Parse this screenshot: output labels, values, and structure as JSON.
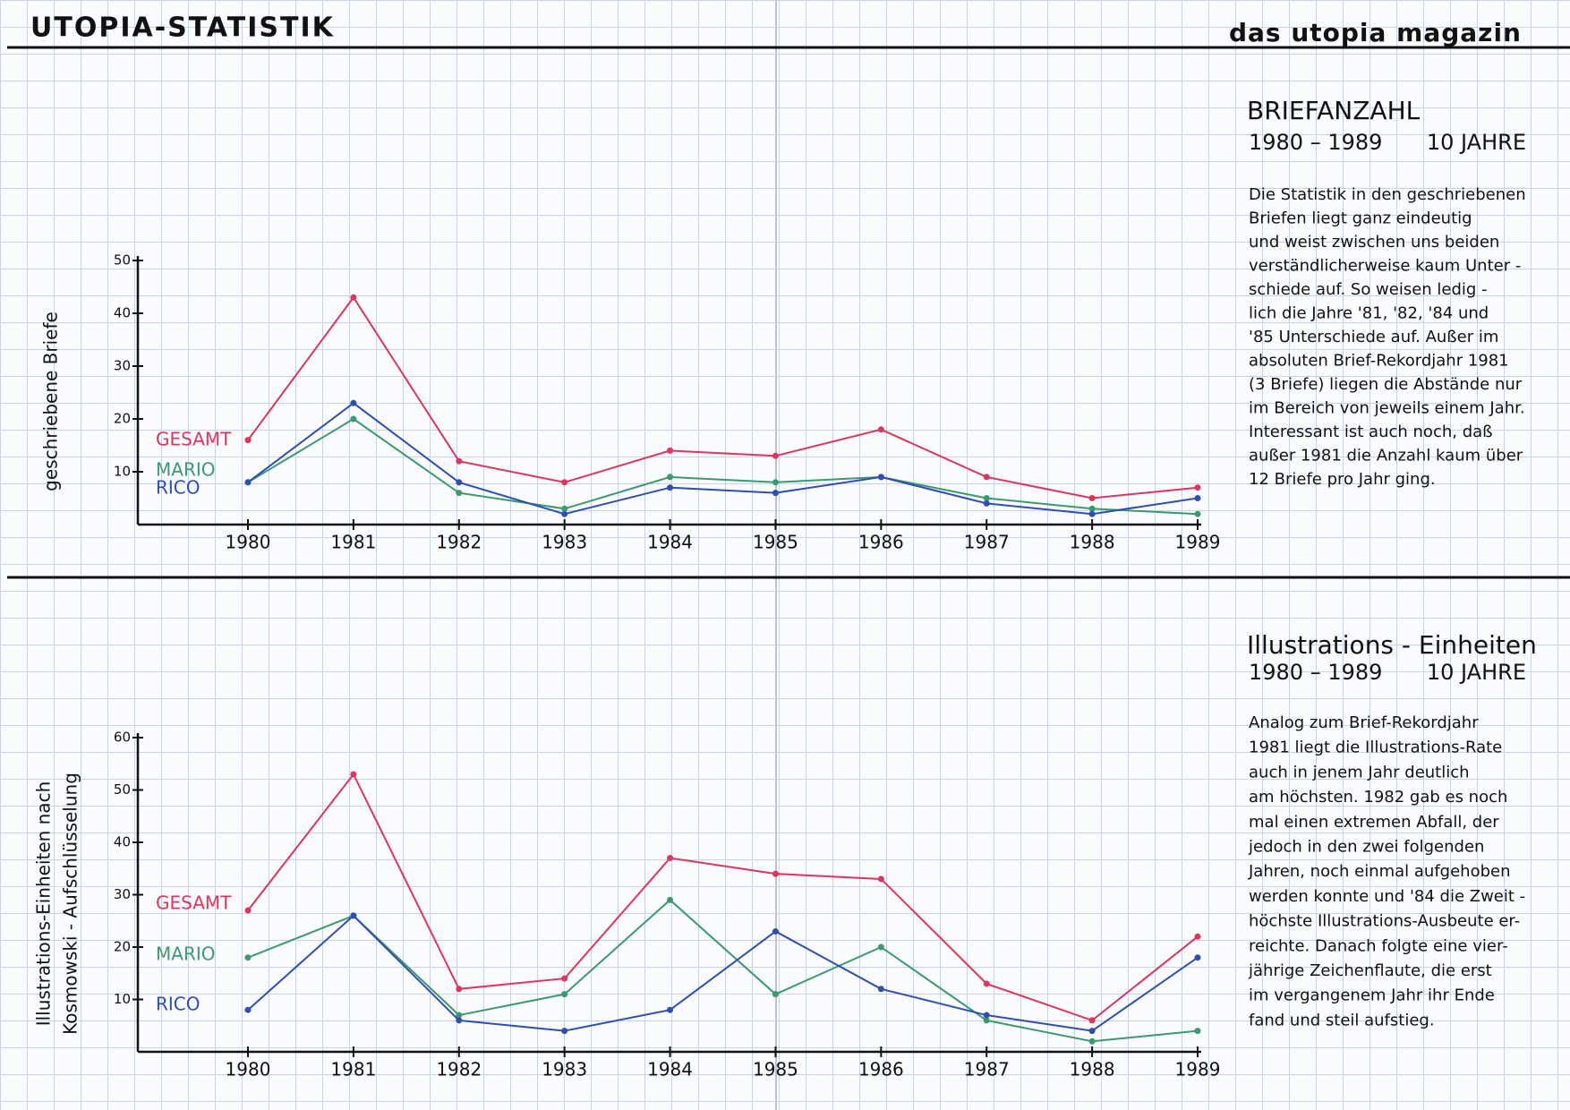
{
  "header": {
    "title": "UTOPIA-STATISTIK",
    "brand": "das utopia magazin"
  },
  "chart_data": [
    {
      "type": "line",
      "title": "BRIEFANZAHL",
      "subtitle": "1980 – 1989",
      "period": "10 JAHRE",
      "ylabel": [
        "geschriebene Briefe"
      ],
      "description": [
        "Die Statistik in den geschriebenen",
        "Briefen liegt ganz eindeutig",
        "und weist zwischen uns beiden",
        "verständlicherweise kaum Unter -",
        "schiede auf. So weisen ledig -",
        "lich die Jahre '81, '82, '84 und",
        "'85 Unterschiede auf. Außer im",
        "absoluten Brief-Rekordjahr 1981",
        "(3 Briefe) liegen die Abstände nur",
        "im Bereich von jeweils einem Jahr.",
        "Interessant ist auch noch, daß",
        "außer 1981 die Anzahl kaum über",
        "12 Briefe pro Jahr ging."
      ],
      "categories": [
        "1980",
        "1981",
        "1982",
        "1983",
        "1984",
        "1985",
        "1986",
        "1987",
        "1988",
        "1989"
      ],
      "series": [
        {
          "name": "GESAMT",
          "color": "#e0355a",
          "values": [
            16,
            43,
            12,
            8,
            14,
            13,
            18,
            9,
            5,
            7
          ]
        },
        {
          "name": "MARIO",
          "color": "#3a9a6c",
          "values": [
            8,
            20,
            6,
            3,
            9,
            8,
            9,
            5,
            3,
            2
          ]
        },
        {
          "name": "RICO",
          "color": "#2f4fb0",
          "values": [
            8,
            23,
            8,
            2,
            7,
            6,
            9,
            4,
            2,
            5
          ]
        }
      ],
      "ylim": [
        0,
        50
      ],
      "yticks": [
        10,
        20,
        30,
        40,
        50
      ],
      "grid": false
    },
    {
      "type": "line",
      "title": "Illustrations - Einheiten",
      "subtitle": "1980 – 1989",
      "period": "10 JAHRE",
      "ylabel": [
        "Illustrations-Einheiten nach",
        "Kosmowski - Aufschlüsselung"
      ],
      "description": [
        "Analog zum Brief-Rekordjahr",
        "1981 liegt die Illustrations-Rate",
        "auch in jenem Jahr deutlich",
        "am höchsten. 1982 gab es noch",
        "mal einen extremen Abfall, der",
        "jedoch in den zwei folgenden",
        "Jahren, noch einmal aufgehoben",
        "werden konnte und '84 die Zweit -",
        "höchste Illustrations-Ausbeute er-",
        "reichte. Danach folgte eine vier-",
        "jährige Zeichenflaute, die erst",
        "im vergangenem Jahr ihr Ende",
        "fand und steil aufstieg."
      ],
      "categories": [
        "1980",
        "1981",
        "1982",
        "1983",
        "1984",
        "1985",
        "1986",
        "1987",
        "1988",
        "1989"
      ],
      "series": [
        {
          "name": "GESAMT",
          "color": "#e0355a",
          "values": [
            27,
            53,
            12,
            14,
            37,
            34,
            33,
            13,
            6,
            22
          ]
        },
        {
          "name": "MARIO",
          "color": "#3a9a6c",
          "values": [
            18,
            26,
            7,
            11,
            29,
            11,
            20,
            6,
            2,
            4
          ]
        },
        {
          "name": "RICO",
          "color": "#2f4fb0",
          "values": [
            8,
            26,
            6,
            4,
            8,
            23,
            12,
            7,
            4,
            18
          ]
        }
      ],
      "ylim": [
        0,
        60
      ],
      "yticks": [
        10,
        20,
        30,
        40,
        50,
        60
      ],
      "grid": false
    }
  ]
}
